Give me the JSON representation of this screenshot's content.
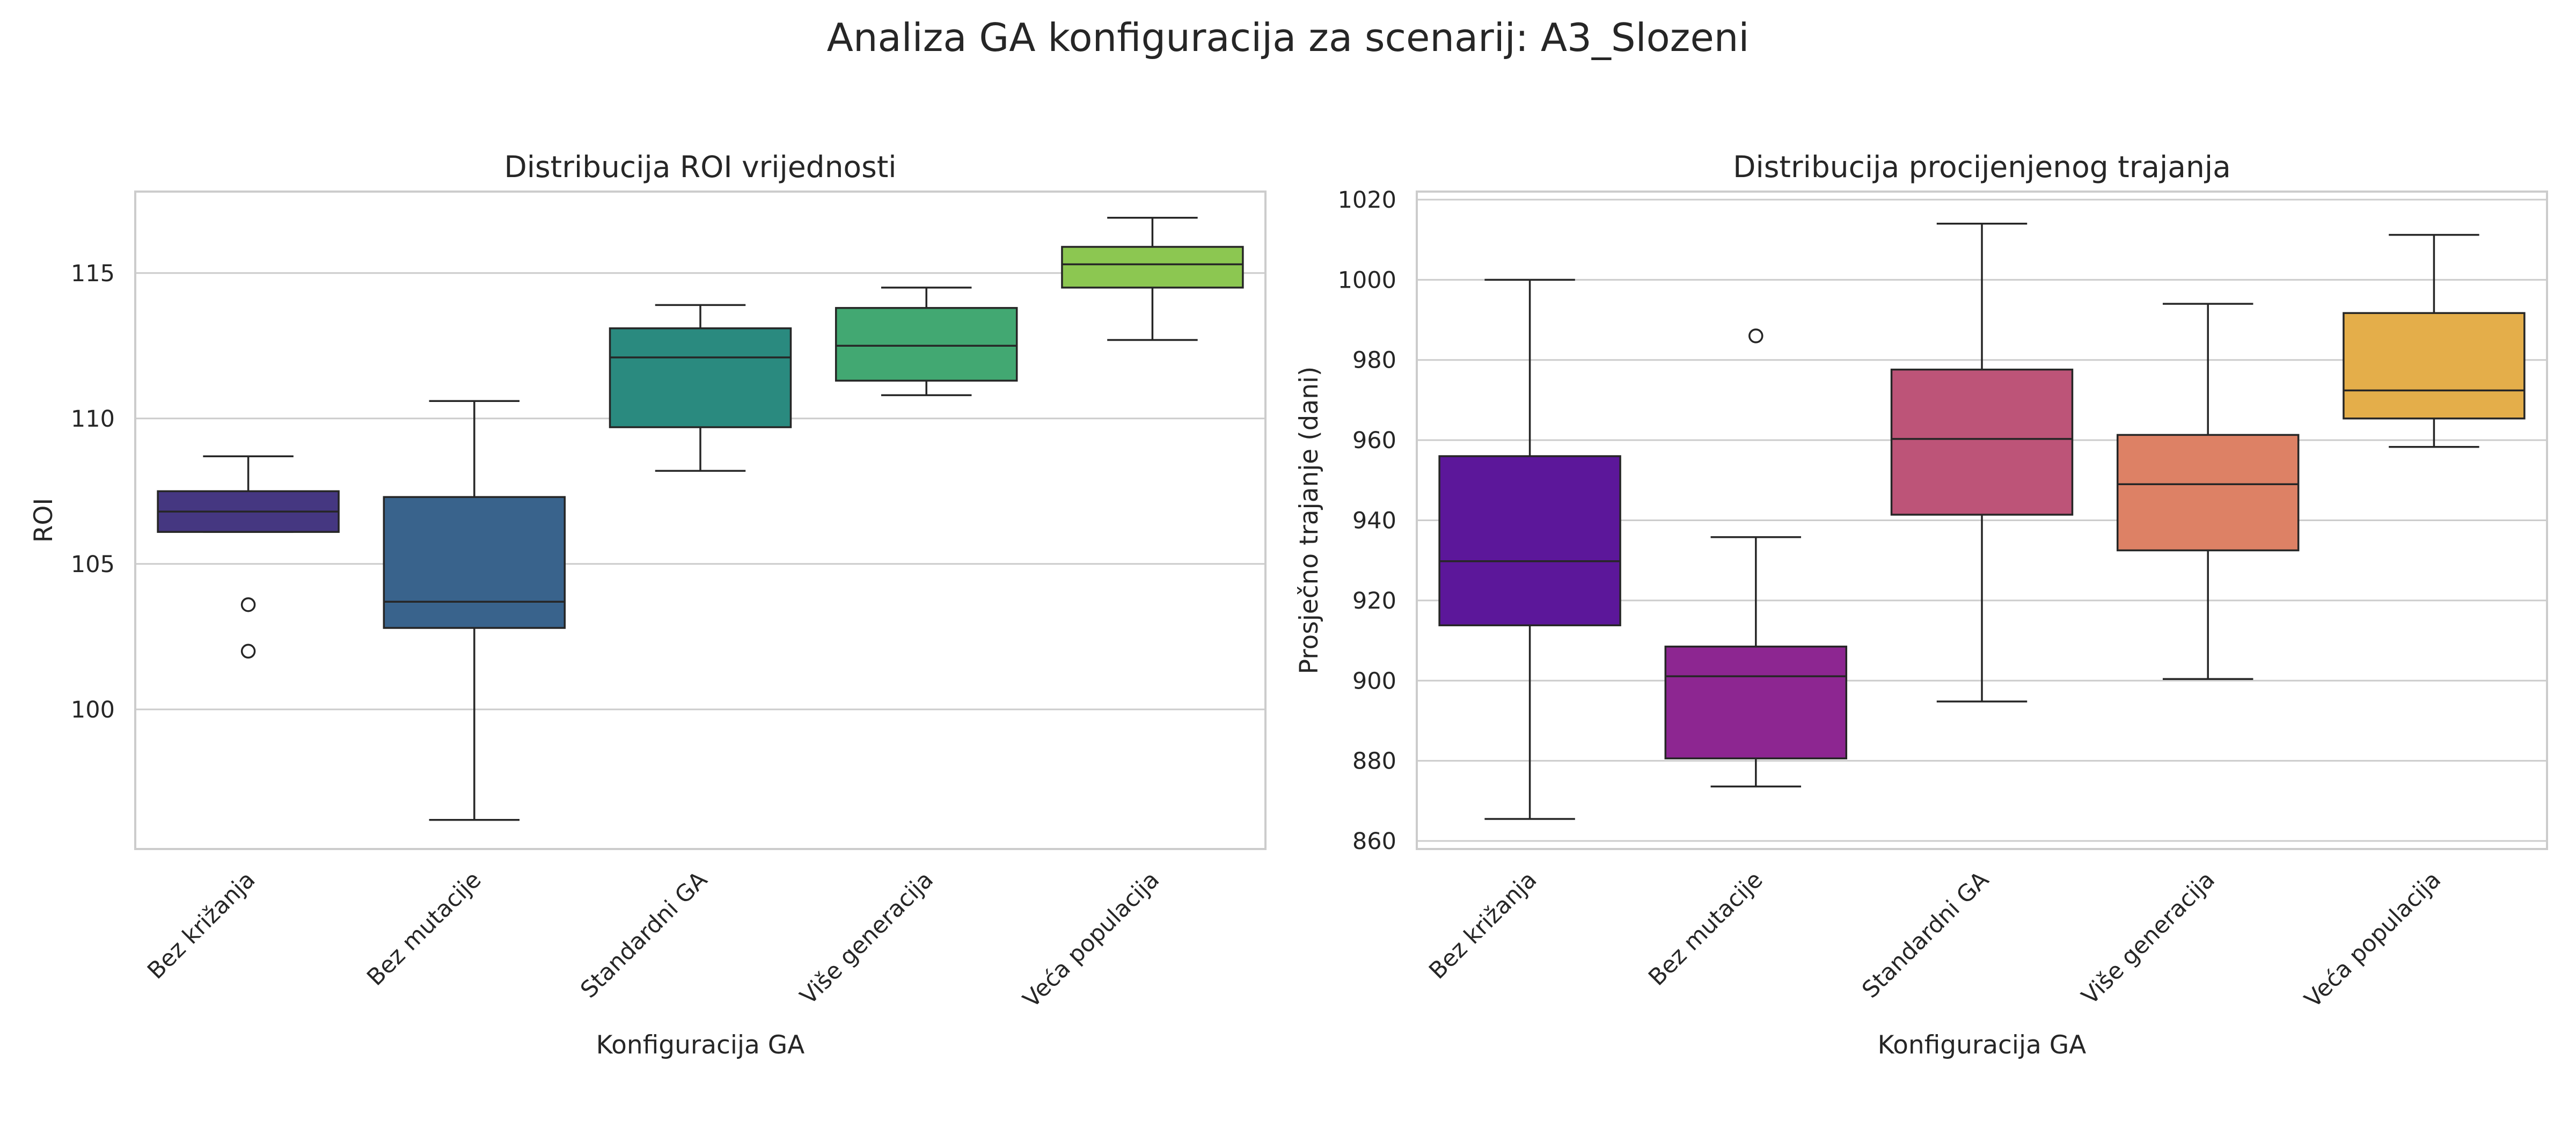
{
  "figure": {
    "suptitle": "Analiza GA konfiguracija za scenarij: A3_Slozeni"
  },
  "chart_data": [
    {
      "type": "box",
      "title": "Distribucija ROI vrijednosti",
      "xlabel": "Konfiguracija GA",
      "ylabel": "ROI",
      "ylim": [
        95.2,
        117.8
      ],
      "yticks": [
        100,
        105,
        110,
        115
      ],
      "grid": true,
      "categories": [
        "Bez križanja",
        "Bez mutacije",
        "Standardni GA",
        "Više generacija",
        "Veća populacija"
      ],
      "colors": [
        "#453781",
        "#39638c",
        "#2a8a7f",
        "#42a872",
        "#8cc751"
      ],
      "boxes": [
        {
          "whisker_low": 106.1,
          "q1": 106.1,
          "median": 106.8,
          "q3": 107.5,
          "whisker_high": 108.7,
          "outliers": [
            103.6,
            102.0
          ]
        },
        {
          "whisker_low": 96.2,
          "q1": 102.8,
          "median": 103.7,
          "q3": 107.3,
          "whisker_high": 110.6,
          "outliers": []
        },
        {
          "whisker_low": 108.2,
          "q1": 109.7,
          "median": 112.1,
          "q3": 113.1,
          "whisker_high": 113.9,
          "outliers": []
        },
        {
          "whisker_low": 110.8,
          "q1": 111.3,
          "median": 112.5,
          "q3": 113.8,
          "whisker_high": 114.5,
          "outliers": []
        },
        {
          "whisker_low": 112.7,
          "q1": 114.5,
          "median": 115.3,
          "q3": 115.9,
          "whisker_high": 116.9,
          "outliers": []
        }
      ]
    },
    {
      "type": "box",
      "title": "Distribucija procijenjenog trajanja",
      "xlabel": "Konfiguracija GA",
      "ylabel": "Prosječno trajanje (dani)",
      "ylim": [
        858,
        1022
      ],
      "yticks": [
        860,
        880,
        900,
        920,
        940,
        960,
        980,
        1000,
        1020
      ],
      "grid": true,
      "categories": [
        "Bez križanja",
        "Bez mutacije",
        "Standardni GA",
        "Više generacija",
        "Veća populacija"
      ],
      "colors": [
        "#5c179a",
        "#8d2691",
        "#bd5478",
        "#dd8165",
        "#e4ae4a"
      ],
      "boxes": [
        {
          "whisker_low": 865.5,
          "q1": 913.8,
          "median": 929.8,
          "q3": 956.0,
          "whisker_high": 1000.0,
          "outliers": []
        },
        {
          "whisker_low": 873.6,
          "q1": 880.6,
          "median": 901.1,
          "q3": 908.5,
          "whisker_high": 935.8,
          "outliers": [
            986.0
          ]
        },
        {
          "whisker_low": 894.8,
          "q1": 941.4,
          "median": 960.3,
          "q3": 977.6,
          "whisker_high": 1014.0,
          "outliers": []
        },
        {
          "whisker_low": 900.4,
          "q1": 932.5,
          "median": 949.0,
          "q3": 961.3,
          "whisker_high": 994.0,
          "outliers": []
        },
        {
          "whisker_low": 958.3,
          "q1": 965.4,
          "median": 972.4,
          "q3": 991.7,
          "whisker_high": 1011.2,
          "outliers": []
        }
      ]
    }
  ]
}
